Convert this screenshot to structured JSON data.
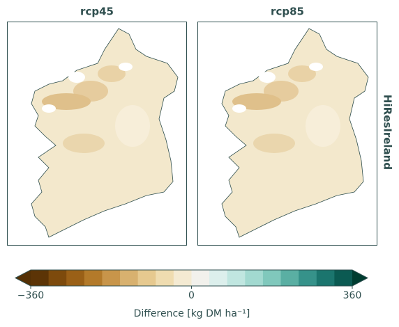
{
  "chart_data": {
    "type": "map",
    "panels": [
      {
        "title": "rcp45"
      },
      {
        "title": "rcp85"
      }
    ],
    "row_label": "HiResIreland",
    "colorbar": {
      "lim": [
        -360,
        360
      ],
      "ticks": [
        {
          "value": -360,
          "label": "−360"
        },
        0,
        360
      ],
      "label": "Difference [kg DM ha⁻¹]",
      "colors": [
        "#5c3406",
        "#7d4a0c",
        "#9a6017",
        "#b37a2a",
        "#c8954a",
        "#d8b16f",
        "#e6c98f",
        "#efdcb0",
        "#f4ead2",
        "#f2f1ec",
        "#dcefec",
        "#c0e6e0",
        "#a2d9d0",
        "#80c8bc",
        "#5aafa3",
        "#36928a",
        "#1b756e",
        "#0b5a52"
      ],
      "under_color": "#543005",
      "over_color": "#003c30"
    }
  }
}
